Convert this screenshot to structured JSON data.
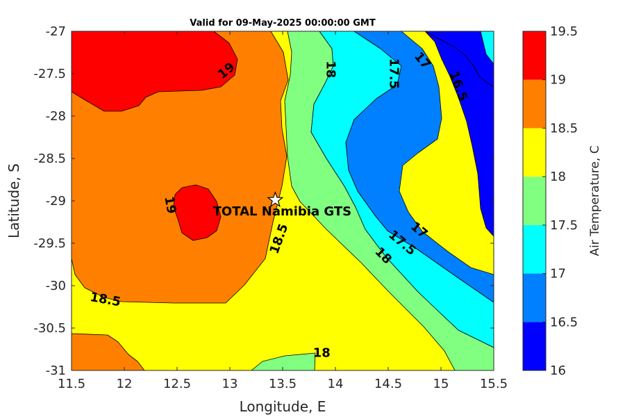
{
  "chart_data": {
    "type": "contour",
    "title": "Valid for 09-May-2025 00:00:00 GMT",
    "xlabel": "Longitude, E",
    "ylabel": "Latitude, S",
    "xlim": [
      11.5,
      15.5
    ],
    "ylim": [
      -31,
      -27
    ],
    "xticks": [
      "11.5",
      "12",
      "12.5",
      "13",
      "13.5",
      "14",
      "14.5",
      "15",
      "15.5"
    ],
    "yticks": [
      "-27",
      "-27.5",
      "-28",
      "-28.5",
      "-29",
      "-29.5",
      "-30",
      "-30.5",
      "-31"
    ],
    "colorbar": {
      "label": "Air Temperature, C",
      "levels": [
        16,
        16.5,
        17,
        17.5,
        18,
        18.5,
        19,
        19.5
      ],
      "tick_labels": [
        "16",
        "16.5",
        "17",
        "17.5",
        "18",
        "18.5",
        "19",
        "19.5"
      ],
      "colors": [
        "#0000ff",
        "#0080ff",
        "#00ffff",
        "#80ff80",
        "#ffff00",
        "#ff8000",
        "#ff0000",
        "#800000"
      ]
    },
    "contour_labels": [
      {
        "text": "19",
        "lon": 12.97,
        "lat": -27.47,
        "rotate": -40
      },
      {
        "text": "19",
        "lon": 12.43,
        "lat": -29.05,
        "rotate": 80
      },
      {
        "text": "18",
        "lon": 13.95,
        "lat": -27.45,
        "rotate": 90
      },
      {
        "text": "17.5",
        "lon": 14.55,
        "lat": -27.5,
        "rotate": 90
      },
      {
        "text": "17",
        "lon": 14.82,
        "lat": -27.35,
        "rotate": 50
      },
      {
        "text": "16.5",
        "lon": 15.16,
        "lat": -27.65,
        "rotate": 70
      },
      {
        "text": "18.5",
        "lon": 13.47,
        "lat": -29.45,
        "rotate": -70
      },
      {
        "text": "17.5",
        "lon": 14.63,
        "lat": -29.5,
        "rotate": 40
      },
      {
        "text": "17",
        "lon": 14.79,
        "lat": -29.35,
        "rotate": 40
      },
      {
        "text": "18",
        "lon": 14.45,
        "lat": -29.65,
        "rotate": 45
      },
      {
        "text": "18.5",
        "lon": 11.82,
        "lat": -30.17,
        "rotate": 10
      },
      {
        "text": "18",
        "lon": 13.87,
        "lat": -30.8,
        "rotate": 0
      }
    ],
    "site": {
      "name": "TOTAL Namibia GTS",
      "lon": 13.43,
      "lat": -28.99
    }
  }
}
